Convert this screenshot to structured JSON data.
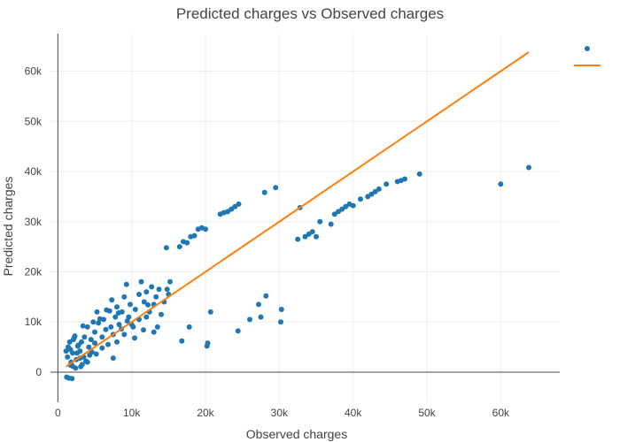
{
  "chart_data": {
    "type": "scatter",
    "title": "Predicted charges vs Observed charges",
    "xlabel": "Observed charges",
    "ylabel": "Predicted charges",
    "xlim": [
      -1000,
      68000
    ],
    "ylim": [
      -6000,
      67500
    ],
    "x_ticks": [
      0,
      10000,
      20000,
      30000,
      40000,
      50000,
      60000
    ],
    "x_tick_labels": [
      "0",
      "10k",
      "20k",
      "30k",
      "40k",
      "50k",
      "60k"
    ],
    "y_ticks": [
      0,
      10000,
      20000,
      30000,
      40000,
      50000,
      60000
    ],
    "y_tick_labels": [
      "0",
      "10k",
      "20k",
      "30k",
      "40k",
      "50k",
      "60k"
    ],
    "grid": true,
    "legend": "top-right",
    "colors": {
      "points": "#1f77b4",
      "line": "#ff7f0e"
    },
    "series": [
      {
        "type": "scatter",
        "points": [
          [
            1200,
            -1000
          ],
          [
            1500,
            -1200
          ],
          [
            1900,
            -1300
          ],
          [
            1300,
            3000
          ],
          [
            1700,
            4500
          ],
          [
            1400,
            5000
          ],
          [
            2100,
            6500
          ],
          [
            2300,
            7200
          ],
          [
            1800,
            2000
          ],
          [
            2600,
            3800
          ],
          [
            2000,
            1200
          ],
          [
            2500,
            2500
          ],
          [
            3000,
            4200
          ],
          [
            3200,
            6000
          ],
          [
            2800,
            5400
          ],
          [
            3600,
            7000
          ],
          [
            4000,
            9000
          ],
          [
            3300,
            1500
          ],
          [
            2400,
            800
          ],
          [
            3500,
            3000
          ],
          [
            4200,
            5000
          ],
          [
            4500,
            6500
          ],
          [
            5000,
            8000
          ],
          [
            4800,
            10000
          ],
          [
            5300,
            12000
          ],
          [
            5500,
            9800
          ],
          [
            4600,
            4000
          ],
          [
            5200,
            3600
          ],
          [
            6000,
            7000
          ],
          [
            6500,
            8500
          ],
          [
            6200,
            10500
          ],
          [
            7000,
            12200
          ],
          [
            7200,
            9000
          ],
          [
            6800,
            5500
          ],
          [
            7500,
            7500
          ],
          [
            7800,
            11000
          ],
          [
            8000,
            13000
          ],
          [
            8300,
            9500
          ],
          [
            8700,
            12000
          ],
          [
            9000,
            15000
          ],
          [
            9300,
            17500
          ],
          [
            9600,
            11000
          ],
          [
            9800,
            13500
          ],
          [
            10200,
            9000
          ],
          [
            10500,
            12500
          ],
          [
            11000,
            15500
          ],
          [
            11300,
            18000
          ],
          [
            11700,
            14000
          ],
          [
            12000,
            16000
          ],
          [
            12400,
            12000
          ],
          [
            12700,
            17000
          ],
          [
            13000,
            13500
          ],
          [
            13300,
            15000
          ],
          [
            13700,
            16500
          ],
          [
            14000,
            11500
          ],
          [
            14400,
            14000
          ],
          [
            14800,
            16500
          ],
          [
            15200,
            18000
          ],
          [
            8000,
            6000
          ],
          [
            9000,
            7500
          ],
          [
            10000,
            9500
          ],
          [
            11000,
            10500
          ],
          [
            12000,
            11000
          ],
          [
            13000,
            8000
          ],
          [
            7500,
            2800
          ],
          [
            6000,
            4800
          ],
          [
            5000,
            5800
          ],
          [
            4000,
            2000
          ],
          [
            3000,
            2800
          ],
          [
            2000,
            3800
          ],
          [
            13500,
            9000
          ],
          [
            15000,
            15500
          ],
          [
            14700,
            24800
          ],
          [
            16500,
            25000
          ],
          [
            17000,
            26000
          ],
          [
            17500,
            25800
          ],
          [
            18000,
            27000
          ],
          [
            18500,
            27200
          ],
          [
            19000,
            28500
          ],
          [
            19500,
            28800
          ],
          [
            20000,
            28500
          ],
          [
            22000,
            31500
          ],
          [
            22500,
            31800
          ],
          [
            23000,
            32000
          ],
          [
            23500,
            32500
          ],
          [
            24000,
            33000
          ],
          [
            24500,
            33500
          ],
          [
            28000,
            35800
          ],
          [
            29500,
            36800
          ],
          [
            32800,
            32800
          ],
          [
            32500,
            26500
          ],
          [
            33500,
            27000
          ],
          [
            34000,
            27500
          ],
          [
            34500,
            28000
          ],
          [
            35000,
            27000
          ],
          [
            35500,
            30000
          ],
          [
            37000,
            29500
          ],
          [
            37500,
            31500
          ],
          [
            38000,
            32000
          ],
          [
            38500,
            32500
          ],
          [
            39000,
            33000
          ],
          [
            39500,
            33500
          ],
          [
            40000,
            33200
          ],
          [
            41000,
            34500
          ],
          [
            42000,
            35000
          ],
          [
            42500,
            35500
          ],
          [
            43000,
            36000
          ],
          [
            43500,
            36500
          ],
          [
            44500,
            37500
          ],
          [
            46000,
            38000
          ],
          [
            46500,
            38200
          ],
          [
            47000,
            38500
          ],
          [
            49000,
            39500
          ],
          [
            60000,
            37500
          ],
          [
            63800,
            40800
          ],
          [
            16800,
            6200
          ],
          [
            17800,
            9000
          ],
          [
            20200,
            5200
          ],
          [
            20300,
            5800
          ],
          [
            20700,
            12000
          ],
          [
            24400,
            8200
          ],
          [
            26000,
            10500
          ],
          [
            27200,
            13500
          ],
          [
            28200,
            15200
          ],
          [
            27500,
            11000
          ],
          [
            30300,
            12500
          ],
          [
            30200,
            10000
          ],
          [
            3800,
            2200
          ],
          [
            4300,
            3400
          ],
          [
            5700,
            10600
          ],
          [
            6600,
            12400
          ],
          [
            7300,
            14400
          ],
          [
            8200,
            11800
          ],
          [
            8600,
            8600
          ],
          [
            9400,
            10200
          ],
          [
            10400,
            6800
          ],
          [
            11600,
            8400
          ],
          [
            12200,
            13400
          ],
          [
            1100,
            4200
          ],
          [
            1600,
            6000
          ],
          [
            2700,
            5200
          ],
          [
            3400,
            9200
          ],
          [
            2200,
            6800
          ],
          [
            1700,
            1400
          ],
          [
            3100,
            1100
          ]
        ]
      },
      {
        "type": "line",
        "points": [
          [
            1100,
            1100
          ],
          [
            63800,
            63800
          ]
        ]
      }
    ]
  }
}
